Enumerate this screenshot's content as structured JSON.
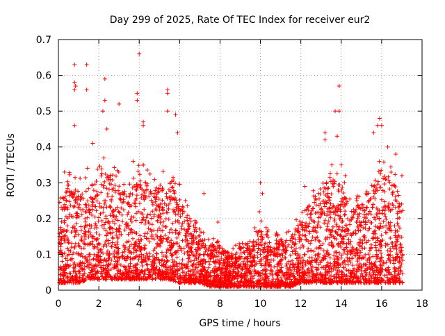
{
  "chart_data": {
    "type": "scatter",
    "title": "Day 299 of 2025, Rate Of TEC Index for receiver eur2",
    "xlabel": "GPS time / hours",
    "ylabel": "ROTI / TECUs",
    "xlim": [
      0,
      18
    ],
    "ylim": [
      0,
      0.7
    ],
    "xticks": [
      "0",
      "2",
      "4",
      "6",
      "8",
      "10",
      "12",
      "14",
      "16",
      "18"
    ],
    "yticks": [
      "0",
      "0.1",
      "0.2",
      "0.3",
      "0.4",
      "0.5",
      "0.6",
      "0.7"
    ],
    "xtick_values": [
      0,
      2,
      4,
      6,
      8,
      10,
      12,
      14,
      16,
      18
    ],
    "ytick_values": [
      0,
      0.1,
      0.2,
      0.3,
      0.4,
      0.5,
      0.6,
      0.7
    ],
    "grid": true,
    "marker": "+",
    "series_color": "#ff0000",
    "x_range_observed": [
      0.05,
      17.05
    ],
    "envelope": {
      "hours": [
        0,
        0.5,
        1,
        1.5,
        2,
        2.5,
        3,
        3.5,
        4,
        4.5,
        5,
        5.5,
        6,
        6.5,
        7,
        7.5,
        8,
        8.5,
        9,
        9.5,
        10,
        10.5,
        11,
        11.5,
        12,
        12.5,
        13,
        13.5,
        14,
        14.5,
        15,
        15.5,
        16,
        16.5,
        17
      ],
      "typical_upper": [
        0.22,
        0.3,
        0.27,
        0.3,
        0.35,
        0.32,
        0.3,
        0.28,
        0.31,
        0.3,
        0.29,
        0.3,
        0.26,
        0.2,
        0.15,
        0.13,
        0.12,
        0.1,
        0.12,
        0.12,
        0.2,
        0.15,
        0.14,
        0.15,
        0.2,
        0.25,
        0.3,
        0.32,
        0.3,
        0.22,
        0.25,
        0.3,
        0.33,
        0.3,
        0.27
      ],
      "typical_lower": [
        0.02,
        0.02,
        0.02,
        0.03,
        0.03,
        0.03,
        0.03,
        0.03,
        0.03,
        0.03,
        0.03,
        0.03,
        0.02,
        0.02,
        0.02,
        0.01,
        0.01,
        0.01,
        0.01,
        0.01,
        0.01,
        0.01,
        0.01,
        0.01,
        0.02,
        0.02,
        0.02,
        0.02,
        0.02,
        0.02,
        0.02,
        0.02,
        0.02,
        0.02,
        0.02
      ]
    },
    "notable_points": [
      {
        "x": 0.8,
        "y": 0.63
      },
      {
        "x": 0.8,
        "y": 0.58
      },
      {
        "x": 0.85,
        "y": 0.57
      },
      {
        "x": 0.8,
        "y": 0.56
      },
      {
        "x": 0.8,
        "y": 0.46
      },
      {
        "x": 1.4,
        "y": 0.63
      },
      {
        "x": 1.4,
        "y": 0.56
      },
      {
        "x": 2.3,
        "y": 0.59
      },
      {
        "x": 2.3,
        "y": 0.53
      },
      {
        "x": 2.2,
        "y": 0.5
      },
      {
        "x": 2.4,
        "y": 0.45
      },
      {
        "x": 3.0,
        "y": 0.52
      },
      {
        "x": 4.0,
        "y": 0.66
      },
      {
        "x": 3.9,
        "y": 0.55
      },
      {
        "x": 3.9,
        "y": 0.53
      },
      {
        "x": 4.2,
        "y": 0.47
      },
      {
        "x": 4.2,
        "y": 0.46
      },
      {
        "x": 5.4,
        "y": 0.56
      },
      {
        "x": 5.4,
        "y": 0.55
      },
      {
        "x": 5.4,
        "y": 0.5
      },
      {
        "x": 5.8,
        "y": 0.49
      },
      {
        "x": 5.9,
        "y": 0.44
      },
      {
        "x": 1.7,
        "y": 0.41
      },
      {
        "x": 7.9,
        "y": 0.19
      },
      {
        "x": 7.2,
        "y": 0.27
      },
      {
        "x": 10.0,
        "y": 0.3
      },
      {
        "x": 10.1,
        "y": 0.27
      },
      {
        "x": 12.2,
        "y": 0.29
      },
      {
        "x": 13.2,
        "y": 0.44
      },
      {
        "x": 13.2,
        "y": 0.42
      },
      {
        "x": 13.7,
        "y": 0.5
      },
      {
        "x": 13.9,
        "y": 0.5
      },
      {
        "x": 13.9,
        "y": 0.57
      },
      {
        "x": 13.8,
        "y": 0.43
      },
      {
        "x": 14.0,
        "y": 0.35
      },
      {
        "x": 14.2,
        "y": 0.32
      },
      {
        "x": 15.9,
        "y": 0.48
      },
      {
        "x": 16.0,
        "y": 0.46
      },
      {
        "x": 15.8,
        "y": 0.46
      },
      {
        "x": 15.6,
        "y": 0.44
      },
      {
        "x": 16.3,
        "y": 0.4
      },
      {
        "x": 17.0,
        "y": 0.32
      },
      {
        "x": 16.7,
        "y": 0.38
      },
      {
        "x": 0.3,
        "y": 0.33
      },
      {
        "x": 3.7,
        "y": 0.36
      }
    ],
    "generated_samples": 4200
  }
}
